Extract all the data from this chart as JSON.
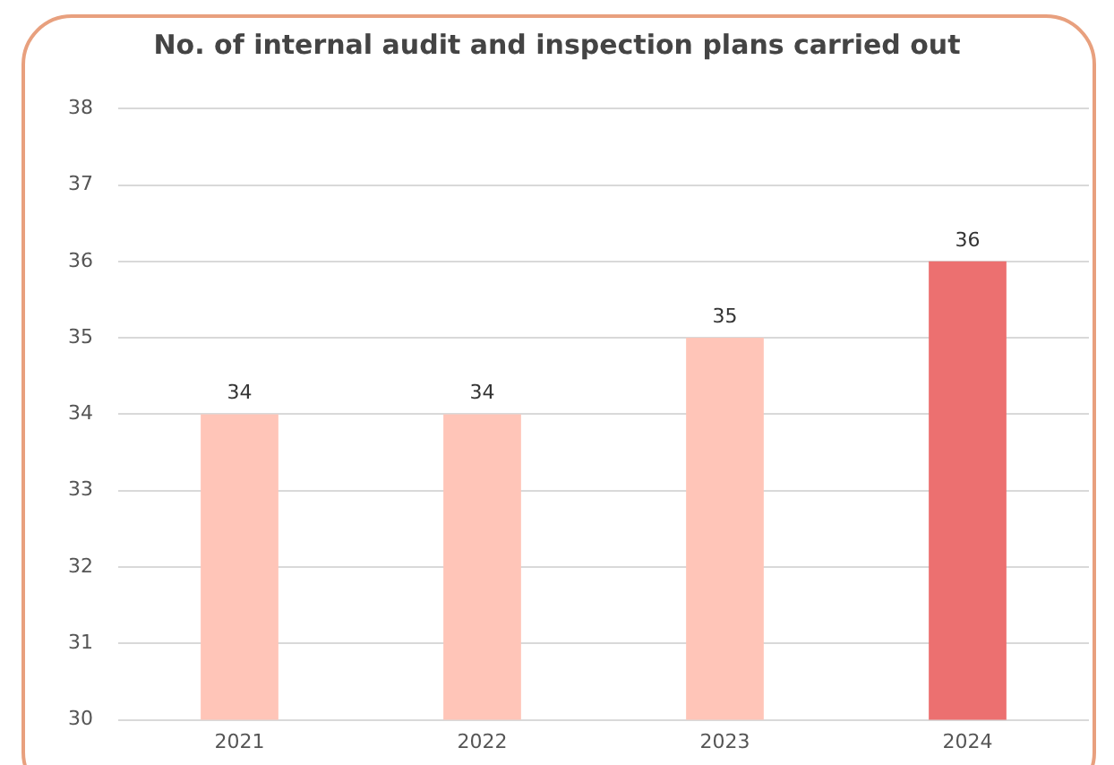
{
  "chart_data": {
    "type": "bar",
    "title": "No. of internal audit and inspection plans carried out",
    "categories": [
      "2021",
      "2022",
      "2023",
      "2024"
    ],
    "values": [
      34,
      34,
      35,
      36
    ],
    "colors": [
      "#ffc5b8",
      "#ffc5b8",
      "#ffc5b8",
      "#ec7070"
    ],
    "ylim": [
      30,
      38
    ],
    "yticks": [
      30,
      31,
      32,
      33,
      34,
      35,
      36,
      37,
      38
    ],
    "grid": "y",
    "data_labels": true,
    "legend": false
  }
}
